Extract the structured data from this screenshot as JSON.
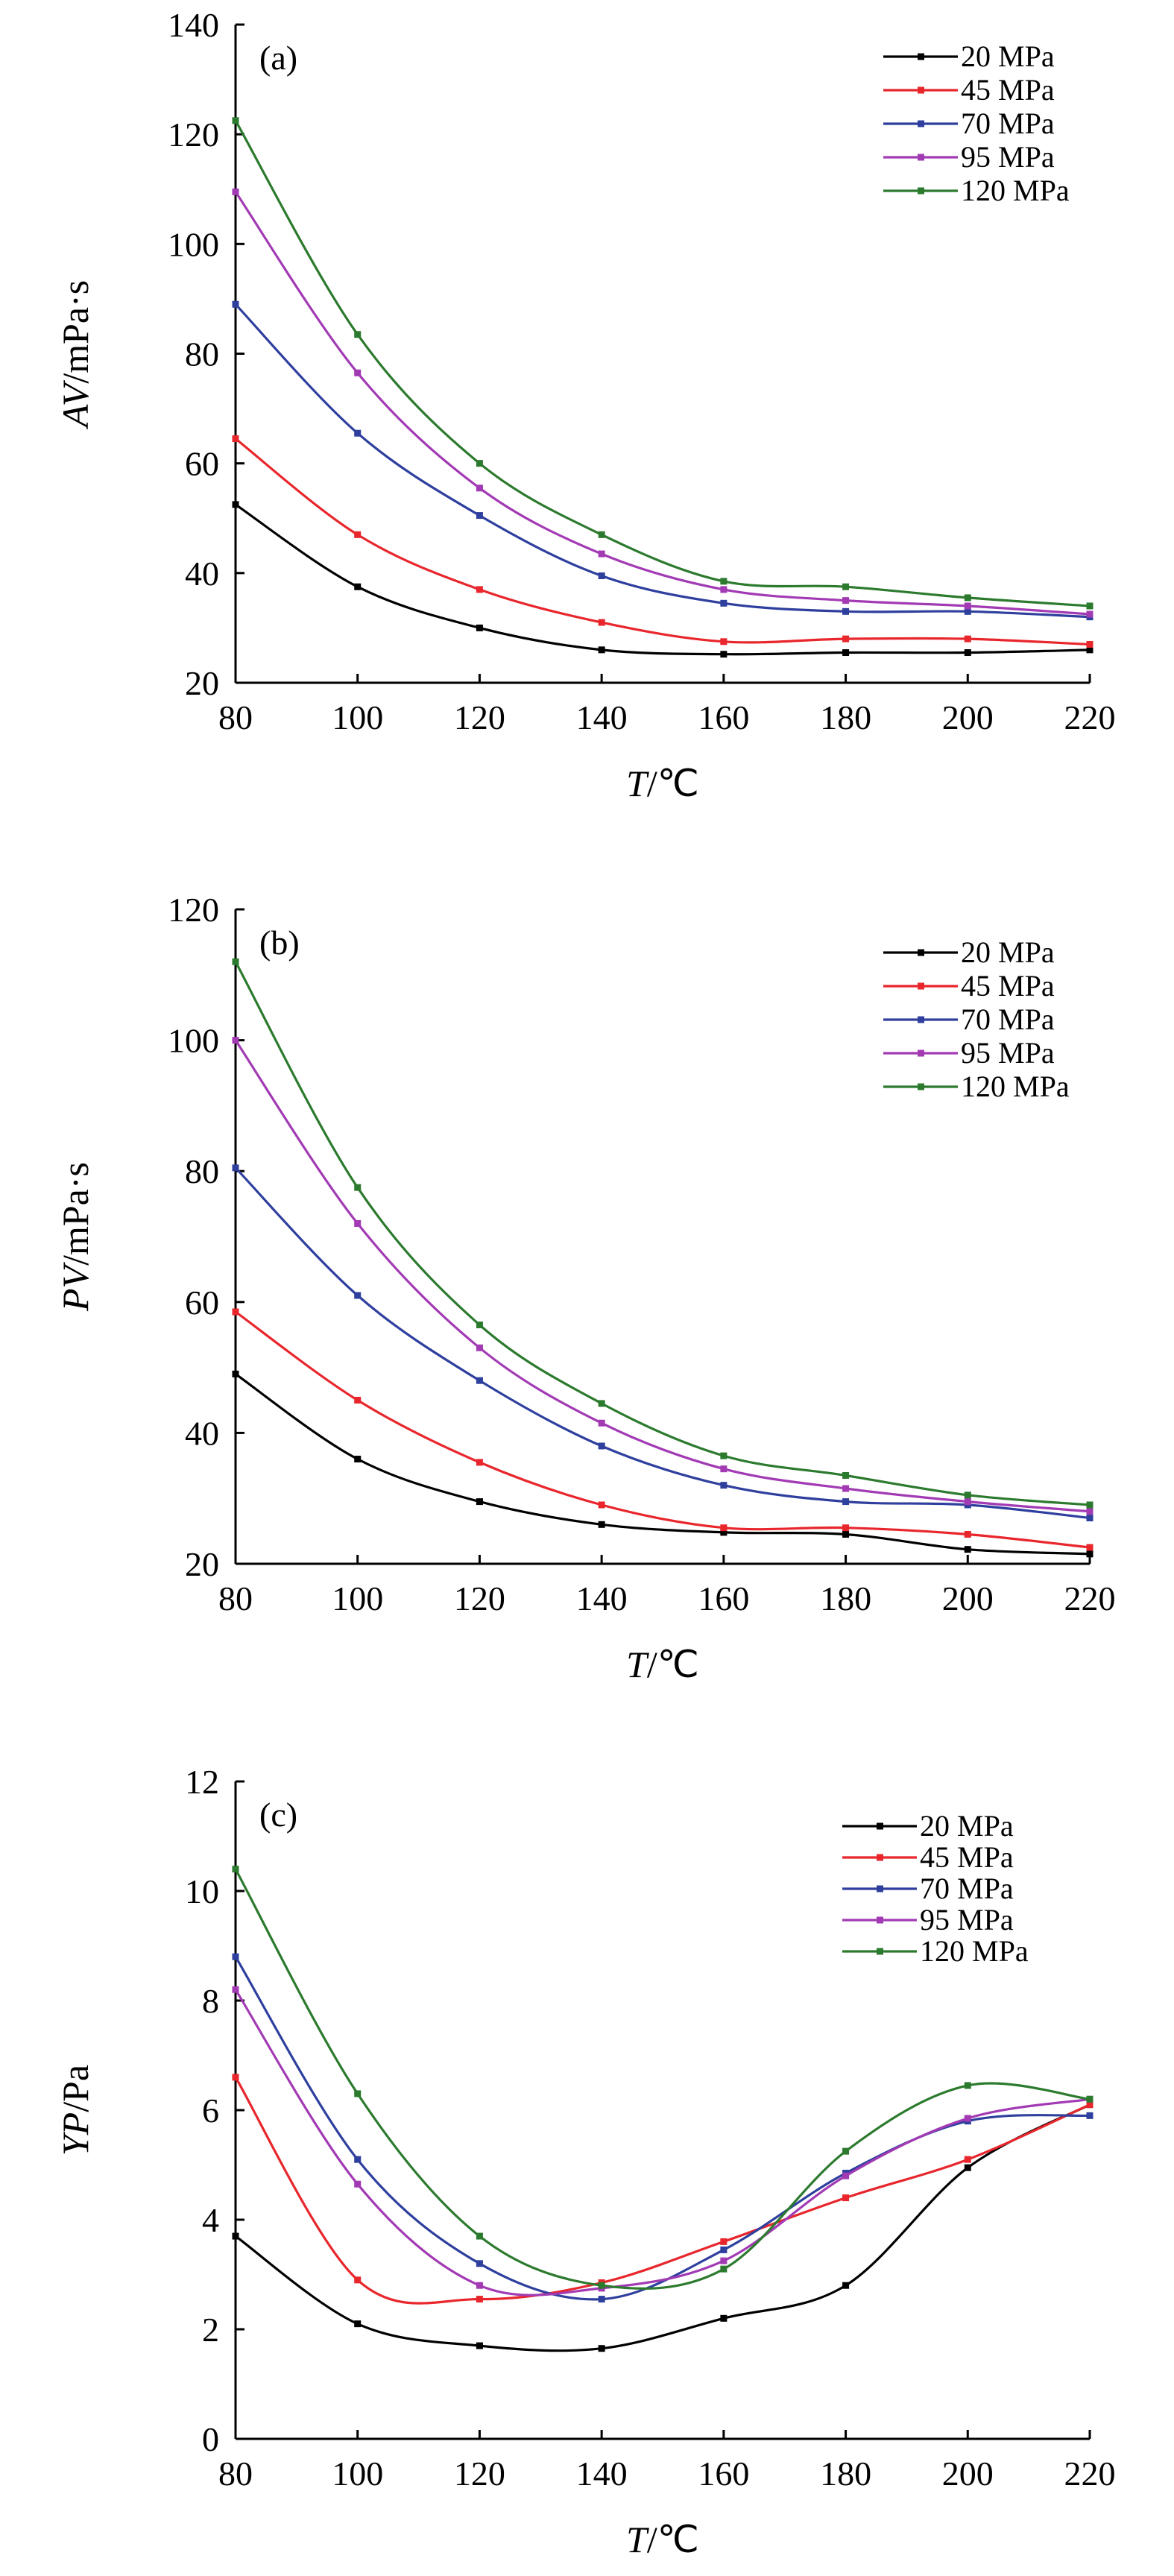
{
  "chart_data": [
    {
      "type": "line",
      "panel_label": "(a)",
      "xlabel": "T/℃",
      "xlabel_italic": "T",
      "xlabel_rest": "/℃",
      "ylabel": "AV/mPa·s",
      "ylabel_italic": "AV",
      "ylabel_rest": "/mPa·s",
      "x": [
        80,
        100,
        120,
        140,
        160,
        180,
        200,
        220
      ],
      "xlim": [
        80,
        220
      ],
      "ylim": [
        20,
        140
      ],
      "xticks": [
        80,
        100,
        120,
        140,
        160,
        180,
        200,
        220
      ],
      "yticks": [
        20,
        40,
        60,
        80,
        100,
        120,
        140
      ],
      "legend_position": "top-right",
      "series": [
        {
          "name": "20 MPa",
          "color": "#000000",
          "values": [
            52.5,
            37.5,
            30,
            26,
            25.2,
            25.5,
            25.5,
            26
          ]
        },
        {
          "name": "45 MPa",
          "color": "#e8262c",
          "values": [
            64.5,
            47,
            37,
            31,
            27.5,
            28,
            28,
            27
          ]
        },
        {
          "name": "70 MPa",
          "color": "#2e3f9e",
          "values": [
            89,
            65.5,
            50.5,
            39.5,
            34.5,
            33,
            33,
            32
          ]
        },
        {
          "name": "95 MPa",
          "color": "#a23ab4",
          "values": [
            109.5,
            76.5,
            55.5,
            43.5,
            37,
            35,
            34,
            32.5
          ]
        },
        {
          "name": "120 MPa",
          "color": "#2c7a2e",
          "values": [
            122.5,
            83.5,
            60,
            47,
            38.5,
            37.5,
            35.5,
            34
          ]
        }
      ]
    },
    {
      "type": "line",
      "panel_label": "(b)",
      "xlabel": "T/℃",
      "xlabel_italic": "T",
      "xlabel_rest": "/℃",
      "ylabel": "PV/mPa·s",
      "ylabel_italic": "PV",
      "ylabel_rest": "/mPa·s",
      "x": [
        80,
        100,
        120,
        140,
        160,
        180,
        200,
        220
      ],
      "xlim": [
        80,
        220
      ],
      "ylim": [
        20,
        120
      ],
      "xticks": [
        80,
        100,
        120,
        140,
        160,
        180,
        200,
        220
      ],
      "yticks": [
        20,
        40,
        60,
        80,
        100,
        120
      ],
      "legend_position": "top-right",
      "series": [
        {
          "name": "20 MPa",
          "color": "#000000",
          "values": [
            49,
            36,
            29.5,
            26,
            24.8,
            24.5,
            22.2,
            21.5
          ]
        },
        {
          "name": "45 MPa",
          "color": "#e8262c",
          "values": [
            58.5,
            45,
            35.5,
            29,
            25.5,
            25.5,
            24.5,
            22.5
          ]
        },
        {
          "name": "70 MPa",
          "color": "#2e3f9e",
          "values": [
            80.5,
            61,
            48,
            38,
            32,
            29.5,
            29,
            27
          ]
        },
        {
          "name": "95 MPa",
          "color": "#a23ab4",
          "values": [
            100,
            72,
            53,
            41.5,
            34.5,
            31.5,
            29.5,
            28
          ]
        },
        {
          "name": "120 MPa",
          "color": "#2c7a2e",
          "values": [
            112,
            77.5,
            56.5,
            44.5,
            36.5,
            33.5,
            30.5,
            29
          ]
        }
      ]
    },
    {
      "type": "line",
      "panel_label": "(c)",
      "xlabel": "T/℃",
      "xlabel_italic": "T",
      "xlabel_rest": "/℃",
      "ylabel": "YP/Pa",
      "ylabel_italic": "YP",
      "ylabel_rest": "/Pa",
      "x": [
        80,
        100,
        120,
        140,
        160,
        180,
        200,
        220
      ],
      "xlim": [
        80,
        220
      ],
      "ylim": [
        0,
        12
      ],
      "xticks": [
        80,
        100,
        120,
        140,
        160,
        180,
        200,
        220
      ],
      "yticks": [
        0,
        2,
        4,
        6,
        8,
        10,
        12
      ],
      "legend_position": "top-right",
      "series": [
        {
          "name": "20 MPa",
          "color": "#000000",
          "values": [
            3.7,
            2.1,
            1.7,
            1.65,
            2.2,
            2.8,
            4.95,
            6.1
          ]
        },
        {
          "name": "45 MPa",
          "color": "#e8262c",
          "values": [
            6.6,
            2.9,
            2.55,
            2.85,
            3.6,
            4.4,
            5.1,
            6.1
          ]
        },
        {
          "name": "70 MPa",
          "color": "#2e3f9e",
          "values": [
            8.8,
            5.1,
            3.2,
            2.55,
            3.45,
            4.85,
            5.8,
            5.9
          ]
        },
        {
          "name": "95 MPa",
          "color": "#a23ab4",
          "values": [
            8.2,
            4.65,
            2.8,
            2.75,
            3.25,
            4.8,
            5.85,
            6.2
          ]
        },
        {
          "name": "120 MPa",
          "color": "#2c7a2e",
          "values": [
            10.4,
            6.3,
            3.7,
            2.8,
            3.1,
            5.25,
            6.45,
            6.2
          ]
        }
      ]
    }
  ]
}
